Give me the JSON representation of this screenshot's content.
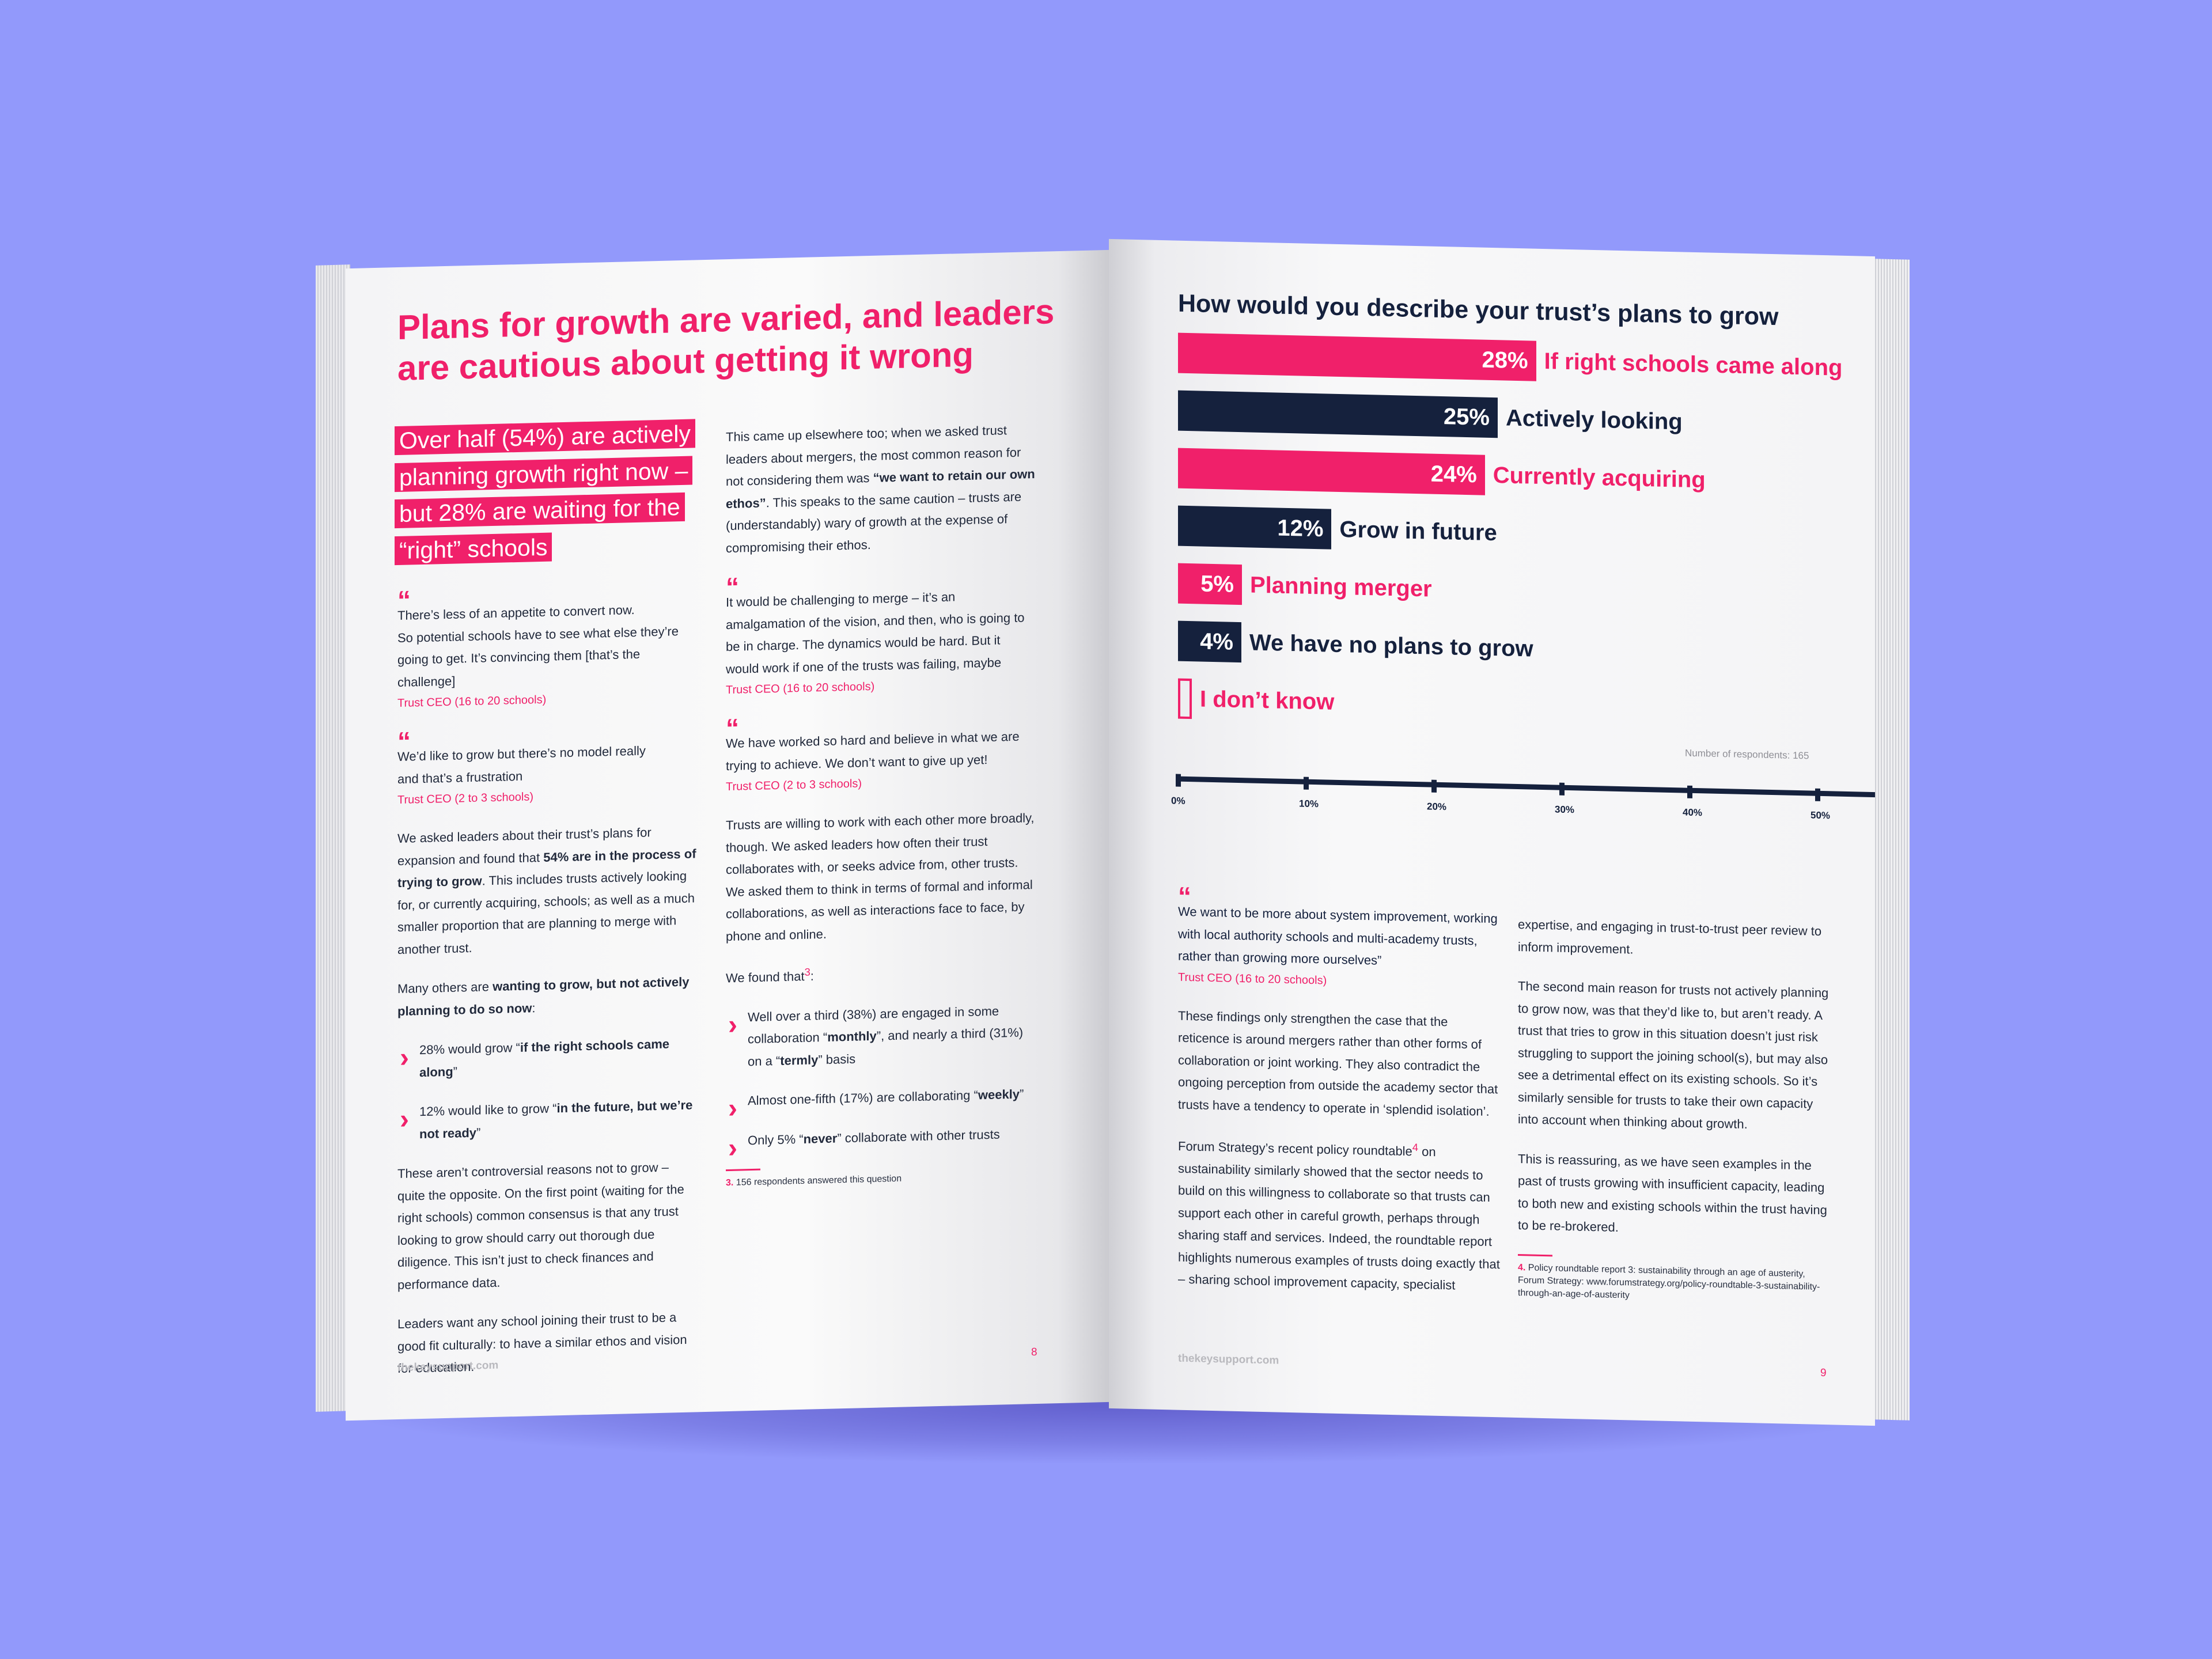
{
  "left_page": {
    "headline": "Plans for growth are varied, and leaders are cautious about getting it wrong",
    "callout": "Over half (54%) are actively planning growth right now – but  28% are waiting for the “right” schools",
    "quote1": {
      "line1": "There’s less of an appetite to convert now.",
      "line2": "So potential schools have to see what else they’re",
      "line3": "going to get. It’s convincing them [that’s the challenge]",
      "attribution": "Trust CEO (16 to 20 schools)"
    },
    "quote2": {
      "line1": "We’d like to grow but there’s no model really",
      "line2": "and that’s a frustration",
      "attribution": "Trust CEO (2 to 3 schools)"
    },
    "para1_a": "We asked leaders about their trust’s plans for expansion and found that ",
    "para1_bold": "54% are in the process of trying to grow",
    "para1_b": ". This includes trusts actively looking for, or currently acquiring, schools; as well as a much smaller proportion that are planning to merge with another trust.",
    "para2_a": "Many others are ",
    "para2_bold": "wanting to grow, but not actively planning to do so now",
    "para2_b": ":",
    "bullet1_a": "28% would grow “",
    "bullet1_bold": "if the right schools came along",
    "bullet1_b": "”",
    "bullet2_a": "12% would like to grow “",
    "bullet2_bold": "in the future, but we’re not ready",
    "bullet2_b": "”",
    "para3": "These aren’t controversial reasons not to grow – quite the opposite. On the first point (waiting for the right schools) common consensus is that any trust looking to grow should carry out thorough due diligence. This isn’t just to check finances and performance data.",
    "para4": "Leaders want any school joining their trust to be a good fit culturally: to have a similar ethos and vision for education.",
    "col2_para1_a": "This came up elsewhere too; when we asked trust leaders about mergers, the most common reason for not considering them was ",
    "col2_para1_bold": "“we want to retain our own ethos”",
    "col2_para1_b": ". This speaks to the same caution – trusts are (understandably) wary of growth at the expense of compromising their ethos.",
    "quote3": {
      "text": "It would be challenging to merge – it’s an amalgamation of the vision, and then, who is going to be in charge. The dynamics would be hard. But it would work if one of the trusts was failing, maybe",
      "attribution": "Trust CEO (16 to 20 schools)"
    },
    "quote4": {
      "text": "We have worked so hard and believe in what we are trying to achieve. We don’t want to give up yet!",
      "attribution": "Trust CEO (2 to 3 schools)"
    },
    "col2_para2": "Trusts are willing to work with each other more broadly, though. We asked leaders how often their trust collaborates with, or seeks advice from, other trusts. We asked them to think in terms of formal and informal collaborations, as well as interactions face to face, by phone and online.",
    "we_found": "We found that",
    "we_found_ref": "3",
    "we_found_end": ":",
    "found1_a": "Well over a third (38%) are engaged in some collaboration “",
    "found1_bold": "monthly",
    "found1_b": "”, and nearly a third (31%) on a “",
    "found1_bold2": "termly",
    "found1_c": "” basis",
    "found2_a": "Almost one-fifth (17%) are collaborating “",
    "found2_bold": "weekly",
    "found2_b": "”",
    "found3_a": "Only 5% “",
    "found3_bold": "never",
    "found3_b": "” collaborate with other trusts",
    "footnote_num": "3.",
    "footnote": "156 respondents answered this question",
    "footer_url": "thekeysupport.com",
    "page_number": "8"
  },
  "right_page": {
    "quote5": {
      "text": "We want to be more about system improvement, working with local authority schools and multi-academy trusts, rather than growing more ourselves”",
      "attribution": "Trust CEO (16 to 20 schools)"
    },
    "para1": "These findings only strengthen the case that the reticence is around mergers rather than other forms of collaboration or joint working. They also contradict the ongoing perception from outside the academy sector that trusts have a tendency to operate in ‘splendid isolation’.",
    "para2_a": "Forum Strategy’s recent policy roundtable",
    "para2_ref": "4",
    "para2_b": " on sustainability similarly showed that the sector needs to build on this willingness to collaborate so that trusts can support each other in careful growth, perhaps through sharing staff and services. Indeed, the roundtable report highlights numerous examples of trusts doing exactly that – sharing school improvement capacity, specialist",
    "col2_para1": "expertise, and engaging in trust-to-trust peer review to inform improvement.",
    "col2_para2": "The second main reason for trusts not actively planning to grow now, was that they’d like to, but aren’t ready. A trust that tries to grow in this situation doesn’t just risk struggling to support the joining school(s), but may also see a detrimental effect on its existing schools. So it’s similarly sensible for trusts to take their own capacity into account when thinking about growth.",
    "col2_para3": "This is reassuring, as we have seen examples in the past of trusts growing with insufficient capacity, leading to both new and existing schools within the trust having to be re-brokered.",
    "footnote_num": "4.",
    "footnote": "Policy roundtable report 3: sustainability through an age of austerity, Forum Strategy: www.forumstrategy.org/policy-roundtable-3-sustainability-through-an-age-of-austerity",
    "footer_url": "thekeysupport.com",
    "page_number": "9"
  },
  "colors": {
    "pink": "#f0206a",
    "navy": "#15213d",
    "background": "#9299fb"
  },
  "chart_data": {
    "type": "bar",
    "orientation": "horizontal",
    "title": "How would you describe your trust’s plans to grow",
    "categories": [
      "If right schools came along",
      "Actively looking",
      "Currently acquiring",
      "Grow in future",
      "Planning merger",
      "We have no plans to grow",
      "I don’t know"
    ],
    "values": [
      28,
      25,
      24,
      12,
      5,
      4,
      0
    ],
    "value_labels": [
      "28%",
      "25%",
      "24%",
      "12%",
      "5%",
      "4%",
      ""
    ],
    "bar_colors": [
      "#f0206a",
      "#15213d",
      "#f0206a",
      "#15213d",
      "#f0206a",
      "#15213d",
      "#f0206a"
    ],
    "xlim": [
      0,
      55
    ],
    "xticks": [
      "0%",
      "10%",
      "20%",
      "30%",
      "40%",
      "50%"
    ],
    "note": "Number of respondents: 165",
    "grid": false,
    "legend": "none"
  }
}
